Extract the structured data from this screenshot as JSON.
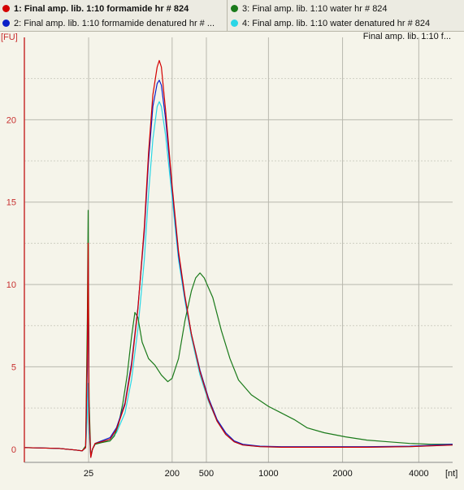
{
  "legend": {
    "items": [
      {
        "label": "1: Final amp. lib. 1:10 formamide hr # 824",
        "color": "#d40000"
      },
      {
        "label": "2: Final amp. lib. 1:10 formamide denatured hr # ...",
        "color": "#0a1fc8"
      },
      {
        "label": "3: Final amp. lib. 1:10 water hr # 824",
        "color": "#1a7a1a"
      },
      {
        "label": "4: Final amp. lib. 1:10 water denatured hr # 824",
        "color": "#2ad6e6"
      }
    ]
  },
  "chart_data": {
    "type": "line",
    "title": "Final amp. lib. 1:10 f...",
    "ylabel": "[FU]",
    "xlabel": "[nt]",
    "ylim": [
      -0.8,
      25
    ],
    "yticks": [
      0,
      5,
      10,
      15,
      20
    ],
    "xticks": [
      {
        "label": "25",
        "t": 0.15
      },
      {
        "label": "200",
        "t": 0.345
      },
      {
        "label": "500",
        "t": 0.425
      },
      {
        "label": "1000",
        "t": 0.57
      },
      {
        "label": "2000",
        "t": 0.743
      },
      {
        "label": "4000",
        "t": 0.921
      }
    ],
    "grid": true,
    "series": [
      {
        "name": "1: Final amp. lib. 1:10 formamide hr # 824",
        "color": "#d40000",
        "points": [
          [
            0,
            0.1
          ],
          [
            0.08,
            0.05
          ],
          [
            0.12,
            -0.05
          ],
          [
            0.135,
            -0.1
          ],
          [
            0.143,
            0.1
          ],
          [
            0.147,
            6
          ],
          [
            0.149,
            12.5
          ],
          [
            0.151,
            2
          ],
          [
            0.155,
            -0.5
          ],
          [
            0.159,
            0
          ],
          [
            0.165,
            0.35
          ],
          [
            0.18,
            0.45
          ],
          [
            0.2,
            0.6
          ],
          [
            0.215,
            1.2
          ],
          [
            0.235,
            2.7
          ],
          [
            0.25,
            5
          ],
          [
            0.265,
            8.5
          ],
          [
            0.28,
            13.5
          ],
          [
            0.29,
            18
          ],
          [
            0.3,
            21.5
          ],
          [
            0.31,
            23.2
          ],
          [
            0.315,
            23.6
          ],
          [
            0.32,
            23.2
          ],
          [
            0.33,
            20.5
          ],
          [
            0.345,
            16
          ],
          [
            0.36,
            12
          ],
          [
            0.375,
            9.3
          ],
          [
            0.39,
            7
          ],
          [
            0.41,
            4.7
          ],
          [
            0.43,
            3
          ],
          [
            0.45,
            1.7
          ],
          [
            0.47,
            0.9
          ],
          [
            0.49,
            0.45
          ],
          [
            0.51,
            0.25
          ],
          [
            0.55,
            0.15
          ],
          [
            0.6,
            0.12
          ],
          [
            0.7,
            0.12
          ],
          [
            0.8,
            0.12
          ],
          [
            0.9,
            0.15
          ],
          [
            1,
            0.25
          ]
        ]
      },
      {
        "name": "2: Final amp. lib. 1:10 formamide denatured hr # ...",
        "color": "#0a1fc8",
        "points": [
          [
            0,
            0.1
          ],
          [
            0.08,
            0.05
          ],
          [
            0.12,
            -0.05
          ],
          [
            0.135,
            -0.1
          ],
          [
            0.143,
            0.1
          ],
          [
            0.147,
            5
          ],
          [
            0.149,
            11.5
          ],
          [
            0.151,
            2
          ],
          [
            0.155,
            -0.5
          ],
          [
            0.159,
            0
          ],
          [
            0.165,
            0.35
          ],
          [
            0.18,
            0.5
          ],
          [
            0.2,
            0.7
          ],
          [
            0.215,
            1.3
          ],
          [
            0.235,
            2.8
          ],
          [
            0.25,
            5.2
          ],
          [
            0.265,
            8.6
          ],
          [
            0.28,
            13.2
          ],
          [
            0.29,
            17.5
          ],
          [
            0.3,
            20.8
          ],
          [
            0.31,
            22.2
          ],
          [
            0.315,
            22.4
          ],
          [
            0.32,
            22.1
          ],
          [
            0.33,
            20
          ],
          [
            0.345,
            15.8
          ],
          [
            0.36,
            11.8
          ],
          [
            0.375,
            9.2
          ],
          [
            0.39,
            7
          ],
          [
            0.41,
            4.8
          ],
          [
            0.43,
            3.1
          ],
          [
            0.45,
            1.8
          ],
          [
            0.47,
            1
          ],
          [
            0.49,
            0.5
          ],
          [
            0.51,
            0.3
          ],
          [
            0.55,
            0.18
          ],
          [
            0.6,
            0.15
          ],
          [
            0.7,
            0.15
          ],
          [
            0.8,
            0.15
          ],
          [
            0.9,
            0.18
          ],
          [
            1,
            0.3
          ]
        ]
      },
      {
        "name": "3: Final amp. lib. 1:10 water hr # 824",
        "color": "#1a7a1a",
        "points": [
          [
            0,
            0.1
          ],
          [
            0.08,
            0.05
          ],
          [
            0.12,
            -0.05
          ],
          [
            0.135,
            -0.1
          ],
          [
            0.143,
            0.2
          ],
          [
            0.147,
            8
          ],
          [
            0.149,
            14.5
          ],
          [
            0.151,
            3
          ],
          [
            0.155,
            -0.4
          ],
          [
            0.159,
            0
          ],
          [
            0.165,
            0.3
          ],
          [
            0.18,
            0.4
          ],
          [
            0.2,
            0.5
          ],
          [
            0.21,
            0.8
          ],
          [
            0.22,
            1.5
          ],
          [
            0.23,
            2.8
          ],
          [
            0.24,
            4.5
          ],
          [
            0.25,
            6.8
          ],
          [
            0.258,
            8.3
          ],
          [
            0.265,
            8
          ],
          [
            0.275,
            6.5
          ],
          [
            0.29,
            5.5
          ],
          [
            0.305,
            5.1
          ],
          [
            0.32,
            4.5
          ],
          [
            0.335,
            4.1
          ],
          [
            0.345,
            4.3
          ],
          [
            0.36,
            5.5
          ],
          [
            0.375,
            7.8
          ],
          [
            0.39,
            9.6
          ],
          [
            0.4,
            10.4
          ],
          [
            0.41,
            10.7
          ],
          [
            0.42,
            10.4
          ],
          [
            0.44,
            9.2
          ],
          [
            0.46,
            7.2
          ],
          [
            0.48,
            5.5
          ],
          [
            0.5,
            4.2
          ],
          [
            0.53,
            3.3
          ],
          [
            0.57,
            2.6
          ],
          [
            0.6,
            2.2
          ],
          [
            0.63,
            1.8
          ],
          [
            0.66,
            1.3
          ],
          [
            0.7,
            1
          ],
          [
            0.75,
            0.75
          ],
          [
            0.8,
            0.55
          ],
          [
            0.85,
            0.45
          ],
          [
            0.9,
            0.35
          ],
          [
            0.95,
            0.3
          ],
          [
            1,
            0.3
          ]
        ]
      },
      {
        "name": "4: Final amp. lib. 1:10 water denatured hr # 824",
        "color": "#2ad6e6",
        "points": [
          [
            0,
            0.1
          ],
          [
            0.08,
            0.05
          ],
          [
            0.12,
            -0.05
          ],
          [
            0.135,
            -0.1
          ],
          [
            0.143,
            0.1
          ],
          [
            0.147,
            2
          ],
          [
            0.149,
            4
          ],
          [
            0.151,
            1
          ],
          [
            0.155,
            -0.3
          ],
          [
            0.159,
            0
          ],
          [
            0.165,
            0.3
          ],
          [
            0.18,
            0.4
          ],
          [
            0.2,
            0.6
          ],
          [
            0.215,
            1
          ],
          [
            0.235,
            2.2
          ],
          [
            0.25,
            4.2
          ],
          [
            0.265,
            7.3
          ],
          [
            0.28,
            11.5
          ],
          [
            0.29,
            15.5
          ],
          [
            0.3,
            18.8
          ],
          [
            0.31,
            20.8
          ],
          [
            0.315,
            21.1
          ],
          [
            0.32,
            20.8
          ],
          [
            0.33,
            19
          ],
          [
            0.345,
            15.3
          ],
          [
            0.36,
            11.5
          ],
          [
            0.375,
            9
          ],
          [
            0.39,
            6.8
          ],
          [
            0.41,
            4.5
          ],
          [
            0.43,
            2.9
          ],
          [
            0.45,
            1.7
          ],
          [
            0.47,
            0.9
          ],
          [
            0.49,
            0.45
          ],
          [
            0.51,
            0.25
          ],
          [
            0.55,
            0.15
          ],
          [
            0.6,
            0.12
          ],
          [
            0.7,
            0.12
          ],
          [
            0.8,
            0.12
          ],
          [
            0.9,
            0.15
          ],
          [
            1,
            0.25
          ]
        ]
      }
    ]
  }
}
